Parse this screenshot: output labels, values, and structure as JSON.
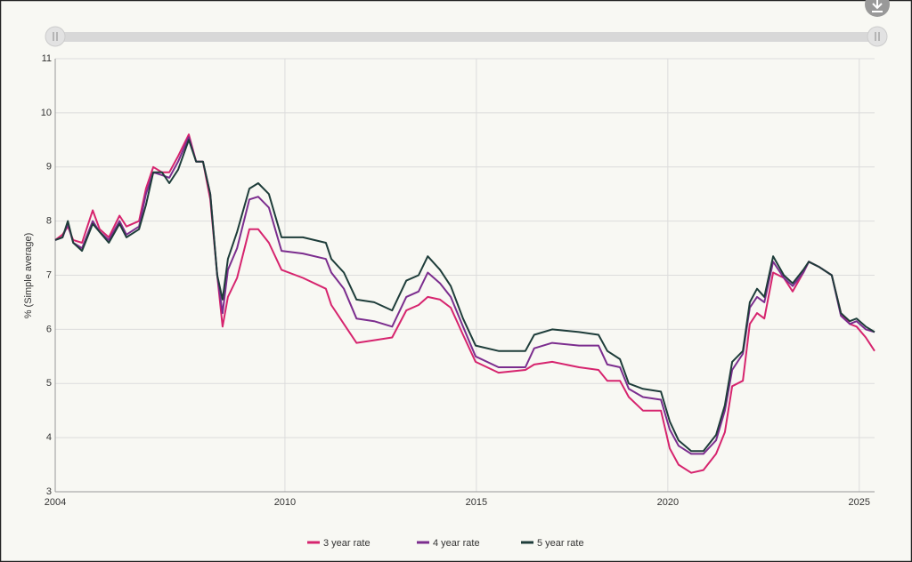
{
  "chart_data": {
    "type": "line",
    "y_label": "% (Simple average)",
    "x": [
      2004.0,
      2004.19,
      2004.33,
      2004.47,
      2004.7,
      2004.98,
      2005.16,
      2005.4,
      2005.68,
      2005.86,
      2006.19,
      2006.37,
      2006.56,
      2006.79,
      2006.98,
      2007.21,
      2007.49,
      2007.68,
      2007.86,
      2008.05,
      2008.23,
      2008.37,
      2008.51,
      2008.75,
      2009.07,
      2009.3,
      2009.58,
      2009.91,
      2010.47,
      2011.07,
      2011.21,
      2011.54,
      2011.87,
      2012.33,
      2012.8,
      2013.17,
      2013.49,
      2013.73,
      2014.05,
      2014.33,
      2014.65,
      2014.98,
      2015.58,
      2016.28,
      2016.51,
      2016.98,
      2017.68,
      2018.19,
      2018.42,
      2018.75,
      2018.98,
      2019.35,
      2019.82,
      2020.05,
      2020.28,
      2020.61,
      2020.93,
      2021.26,
      2021.49,
      2021.68,
      2021.96,
      2022.14,
      2022.33,
      2022.52,
      2022.75,
      2023.03,
      2023.26,
      2023.54,
      2023.68,
      2023.96,
      2024.28,
      2024.52,
      2024.75,
      2024.93,
      2025.17,
      2025.4
    ],
    "series": [
      {
        "name": "3 year rate",
        "color": "#d6246e",
        "values": [
          7.65,
          7.75,
          7.9,
          7.65,
          7.6,
          8.2,
          7.85,
          7.7,
          8.1,
          7.9,
          8.0,
          8.6,
          9.0,
          8.9,
          8.9,
          9.2,
          9.6,
          9.1,
          9.1,
          8.4,
          7.0,
          6.05,
          6.6,
          6.95,
          7.85,
          7.85,
          7.6,
          7.1,
          6.95,
          6.75,
          6.45,
          6.1,
          5.75,
          5.8,
          5.85,
          6.35,
          6.45,
          6.6,
          6.55,
          6.4,
          5.9,
          5.4,
          5.2,
          5.25,
          5.35,
          5.4,
          5.3,
          5.25,
          5.05,
          5.05,
          4.75,
          4.5,
          4.5,
          3.8,
          3.5,
          3.35,
          3.4,
          3.7,
          4.1,
          4.95,
          5.05,
          6.1,
          6.3,
          6.2,
          7.05,
          6.95,
          6.7,
          7.05,
          7.25,
          7.15,
          7.0,
          6.3,
          6.1,
          6.05,
          5.85,
          5.6
        ]
      },
      {
        "name": "4 year rate",
        "color": "#7b2d8e",
        "values": [
          7.65,
          7.7,
          7.95,
          7.6,
          7.5,
          8.0,
          7.8,
          7.65,
          8.0,
          7.75,
          7.9,
          8.5,
          8.9,
          8.85,
          8.8,
          9.1,
          9.55,
          9.1,
          9.1,
          8.5,
          7.0,
          6.3,
          7.1,
          7.5,
          8.4,
          8.45,
          8.25,
          7.45,
          7.4,
          7.3,
          7.05,
          6.75,
          6.2,
          6.15,
          6.05,
          6.6,
          6.7,
          7.05,
          6.85,
          6.6,
          6.05,
          5.5,
          5.3,
          5.3,
          5.65,
          5.75,
          5.7,
          5.7,
          5.35,
          5.3,
          4.9,
          4.75,
          4.7,
          4.15,
          3.85,
          3.7,
          3.7,
          3.95,
          4.5,
          5.25,
          5.55,
          6.4,
          6.6,
          6.5,
          7.25,
          6.95,
          6.8,
          7.05,
          7.25,
          7.15,
          7.0,
          6.25,
          6.1,
          6.15,
          6.0,
          5.95
        ]
      },
      {
        "name": "5 year rate",
        "color": "#1e3d3a",
        "values": [
          7.65,
          7.7,
          8.0,
          7.6,
          7.45,
          7.95,
          7.8,
          7.6,
          7.95,
          7.7,
          7.85,
          8.3,
          8.9,
          8.9,
          8.7,
          8.95,
          9.5,
          9.1,
          9.1,
          8.5,
          7.0,
          6.55,
          7.3,
          7.8,
          8.6,
          8.7,
          8.5,
          7.7,
          7.7,
          7.6,
          7.3,
          7.05,
          6.55,
          6.5,
          6.35,
          6.9,
          7.0,
          7.35,
          7.1,
          6.8,
          6.2,
          5.7,
          5.6,
          5.6,
          5.9,
          6.0,
          5.95,
          5.9,
          5.6,
          5.45,
          5.0,
          4.9,
          4.85,
          4.3,
          3.95,
          3.75,
          3.75,
          4.05,
          4.6,
          5.4,
          5.6,
          6.5,
          6.75,
          6.6,
          7.35,
          7.0,
          6.85,
          7.1,
          7.25,
          7.15,
          7.0,
          6.3,
          6.15,
          6.2,
          6.05,
          5.95
        ]
      }
    ],
    "xlim": [
      2004,
      2025.4
    ],
    "xticks": [
      2004,
      2010,
      2015,
      2020,
      2025
    ],
    "ylim": [
      3,
      11
    ],
    "yticks": [
      3,
      4,
      5,
      6,
      7,
      8,
      9,
      10,
      11
    ],
    "grid": true,
    "legend": "bottom"
  }
}
